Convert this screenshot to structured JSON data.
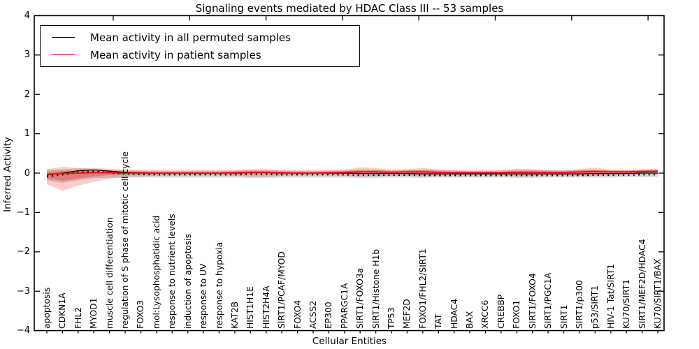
{
  "title": "Signaling events mediated by HDAC Class III -- 53 samples",
  "chart_data": {
    "type": "line",
    "title": "Signaling events mediated by HDAC Class III -- 53 samples",
    "xlabel": "Cellular Entities",
    "ylabel": "Inferred Activity",
    "ylim": [
      -4,
      4
    ],
    "grid": false,
    "legend_position": "upper left",
    "yticklabels": [
      "4",
      "3",
      "2",
      "1",
      "0",
      "−1",
      "−2",
      "−3",
      "−4"
    ],
    "yticks": [
      4,
      3,
      2,
      1,
      0,
      -1,
      -2,
      -3,
      -4
    ],
    "categories": [
      "apoptosis",
      "CDKN1A",
      "FHL2",
      "MYOD1",
      "muscle cell differentiation",
      "regulation of S phase of mitotic cell cycle",
      "FOXO3",
      "mol:Lysophosphatidic acid",
      "response to nutrient levels",
      "induction of apoptosis",
      "response to UV",
      "response to hypoxia",
      "KAT2B",
      "HIST1H1E",
      "HIST2H4A",
      "SIRT1/PCAF/MYOD",
      "FOXO4",
      "ACSS2",
      "EP300",
      "PPARGC1A",
      "SIRT1/FOXO3a",
      "SIRT1/Histone H1b",
      "TP53",
      "MEF2D",
      "FOXO1/FHL2/SIRT1",
      "TAT",
      "HDAC4",
      "BAX",
      "XRCC6",
      "CREBBP",
      "FOXO1",
      "SIRT1/FOXO4",
      "SIRT1/PGC1A",
      "SIRT1",
      "SIRT1/p300",
      "p53/SIRT1",
      "HIV-1 Tat/SIRT1",
      "KU70/SIRT1",
      "SIRT1/MEF2D/HDAC4",
      "KU70/SIRT1/BAX"
    ],
    "legend": [
      {
        "label": "Mean activity in all permuted samples",
        "color": "#000000"
      },
      {
        "label": "Mean activity in patient samples",
        "color": "#ff0000"
      }
    ],
    "series": [
      {
        "name": "Mean activity in all permuted samples",
        "color": "#000000",
        "values": [
          -0.05,
          0.0,
          0.06,
          0.08,
          0.05,
          0.02,
          0.01,
          0.0,
          0.0,
          0.0,
          0.0,
          0.0,
          0.0,
          0.01,
          0.01,
          0.0,
          0.0,
          0.0,
          0.0,
          0.0,
          -0.01,
          -0.01,
          -0.01,
          -0.01,
          -0.02,
          -0.02,
          -0.02,
          -0.02,
          -0.02,
          -0.02,
          -0.02,
          -0.02,
          -0.02,
          -0.02,
          -0.02,
          -0.01,
          -0.01,
          -0.01,
          0.0,
          0.0
        ]
      },
      {
        "name": "Mean activity in patient samples",
        "color": "#ff0000",
        "values": [
          -0.03,
          -0.01,
          0.0,
          0.01,
          0.01,
          0.0,
          0.0,
          0.0,
          0.0,
          0.0,
          0.0,
          0.0,
          0.01,
          0.02,
          0.02,
          0.01,
          0.0,
          0.0,
          0.01,
          0.02,
          0.03,
          0.03,
          0.02,
          0.03,
          0.03,
          0.02,
          0.01,
          0.01,
          0.01,
          0.01,
          0.02,
          0.02,
          0.02,
          0.02,
          0.03,
          0.04,
          0.03,
          0.03,
          0.04,
          0.05
        ]
      }
    ],
    "bands": [
      {
        "name": "permuted-spread",
        "color": "rgba(120,120,120,0.30)",
        "upper": [
          0.08,
          0.1,
          0.12,
          0.13,
          0.11,
          0.09,
          0.08,
          0.08,
          0.08,
          0.08,
          0.08,
          0.08,
          0.08,
          0.09,
          0.09,
          0.08,
          0.08,
          0.08,
          0.08,
          0.08,
          0.08,
          0.08,
          0.08,
          0.08,
          0.08,
          0.08,
          0.08,
          0.08,
          0.08,
          0.08,
          0.08,
          0.08,
          0.08,
          0.08,
          0.08,
          0.08,
          0.08,
          0.08,
          0.08,
          0.08
        ],
        "lower": [
          -0.18,
          -0.25,
          -0.18,
          -0.13,
          -0.12,
          -0.11,
          -0.11,
          -0.11,
          -0.11,
          -0.11,
          -0.11,
          -0.11,
          -0.11,
          -0.12,
          -0.12,
          -0.11,
          -0.11,
          -0.11,
          -0.11,
          -0.11,
          -0.12,
          -0.12,
          -0.11,
          -0.11,
          -0.12,
          -0.11,
          -0.11,
          -0.11,
          -0.11,
          -0.11,
          -0.12,
          -0.12,
          -0.11,
          -0.11,
          -0.11,
          -0.11,
          -0.11,
          -0.1,
          -0.1,
          -0.1
        ]
      },
      {
        "name": "patient-spread",
        "color": "rgba(255,0,0,0.20)",
        "upper": [
          0.1,
          0.16,
          0.13,
          0.1,
          0.08,
          0.07,
          0.06,
          0.05,
          0.05,
          0.05,
          0.05,
          0.05,
          0.06,
          0.09,
          0.09,
          0.06,
          0.05,
          0.05,
          0.06,
          0.08,
          0.15,
          0.13,
          0.08,
          0.1,
          0.13,
          0.09,
          0.06,
          0.05,
          0.05,
          0.06,
          0.11,
          0.1,
          0.07,
          0.06,
          0.1,
          0.14,
          0.09,
          0.08,
          0.1,
          0.11
        ],
        "lower": [
          -0.28,
          -0.45,
          -0.32,
          -0.22,
          -0.14,
          -0.1,
          -0.08,
          -0.07,
          -0.06,
          -0.06,
          -0.06,
          -0.06,
          -0.07,
          -0.09,
          -0.09,
          -0.07,
          -0.06,
          -0.06,
          -0.06,
          -0.07,
          -0.09,
          -0.08,
          -0.07,
          -0.07,
          -0.08,
          -0.07,
          -0.06,
          -0.06,
          -0.06,
          -0.06,
          -0.08,
          -0.08,
          -0.06,
          -0.06,
          -0.07,
          -0.07,
          -0.06,
          -0.04,
          -0.03,
          -0.02
        ]
      }
    ]
  }
}
